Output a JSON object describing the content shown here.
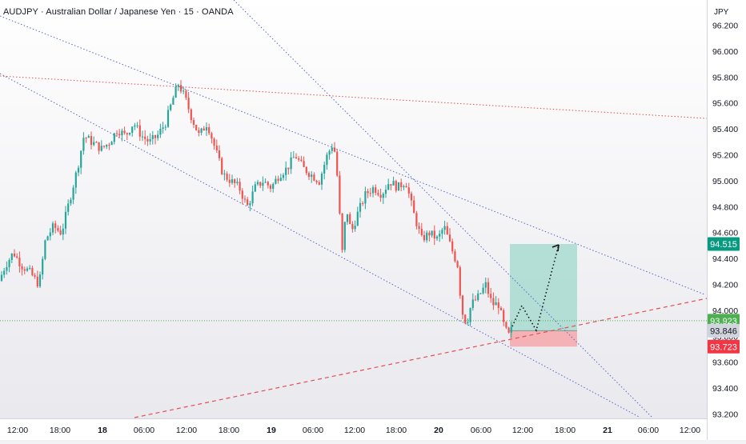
{
  "chart_data": {
    "type": "candlestick",
    "title": "AUDJPY · Australian Dollar / Japanese Yen · 15 · OANDA",
    "currency_label": "JPY",
    "ylim": [
      93.2,
      96.2
    ],
    "y_ticks": [
      "96.200",
      "96.000",
      "95.800",
      "95.600",
      "95.400",
      "95.200",
      "95.000",
      "94.800",
      "94.600",
      "94.400",
      "94.200",
      "94.000",
      "93.800",
      "93.600",
      "93.400",
      "93.200"
    ],
    "x_ticks": [
      "12:00",
      "18:00",
      "18",
      "06:00",
      "12:00",
      "18:00",
      "19",
      "06:00",
      "12:00",
      "18:00",
      "20",
      "06:00",
      "12:00",
      "18:00",
      "21",
      "06:00",
      "12:00"
    ],
    "bold_x_ticks": [
      "18",
      "19",
      "20",
      "21"
    ],
    "price_path": [
      [
        0,
        94.2
      ],
      [
        10,
        94.35
      ],
      [
        20,
        94.45
      ],
      [
        30,
        94.35
      ],
      [
        40,
        94.3
      ],
      [
        52,
        94.2
      ],
      [
        60,
        94.55
      ],
      [
        70,
        94.65
      ],
      [
        80,
        94.6
      ],
      [
        92,
        94.9
      ],
      [
        100,
        95.1
      ],
      [
        108,
        95.35
      ],
      [
        118,
        95.3
      ],
      [
        130,
        95.25
      ],
      [
        140,
        95.3
      ],
      [
        150,
        95.4
      ],
      [
        160,
        95.35
      ],
      [
        170,
        95.45
      ],
      [
        180,
        95.35
      ],
      [
        190,
        95.3
      ],
      [
        200,
        95.35
      ],
      [
        210,
        95.45
      ],
      [
        220,
        95.65
      ],
      [
        226,
        95.75
      ],
      [
        234,
        95.65
      ],
      [
        242,
        95.5
      ],
      [
        252,
        95.35
      ],
      [
        262,
        95.45
      ],
      [
        272,
        95.25
      ],
      [
        282,
        95.05
      ],
      [
        292,
        95.0
      ],
      [
        302,
        94.95
      ],
      [
        312,
        94.8
      ],
      [
        322,
        94.95
      ],
      [
        332,
        95.0
      ],
      [
        342,
        94.95
      ],
      [
        352,
        95.05
      ],
      [
        362,
        95.1
      ],
      [
        372,
        95.2
      ],
      [
        382,
        95.1
      ],
      [
        392,
        95.05
      ],
      [
        402,
        95.0
      ],
      [
        412,
        95.2
      ],
      [
        420,
        95.3
      ],
      [
        426,
        94.95
      ],
      [
        430,
        94.4
      ],
      [
        436,
        94.8
      ],
      [
        442,
        94.6
      ],
      [
        450,
        94.75
      ],
      [
        460,
        94.9
      ],
      [
        470,
        94.95
      ],
      [
        480,
        94.9
      ],
      [
        490,
        95.0
      ],
      [
        500,
        94.95
      ],
      [
        510,
        95.0
      ],
      [
        520,
        94.75
      ],
      [
        530,
        94.55
      ],
      [
        540,
        94.6
      ],
      [
        550,
        94.55
      ],
      [
        558,
        94.65
      ],
      [
        566,
        94.5
      ],
      [
        575,
        94.35
      ],
      [
        580,
        94.0
      ],
      [
        586,
        93.9
      ],
      [
        592,
        94.05
      ],
      [
        600,
        94.1
      ],
      [
        610,
        94.2
      ],
      [
        618,
        94.05
      ],
      [
        626,
        94.05
      ],
      [
        632,
        93.9
      ],
      [
        638,
        93.8
      ],
      [
        642,
        93.85
      ]
    ],
    "current_price": "93.923",
    "current_price_value": 93.923,
    "entry_price": "93.846",
    "entry_price_value": 93.846,
    "target_price": "94.515",
    "target_price_value": 94.515,
    "stop_price": "93.723",
    "stop_price_value": 93.723,
    "colors": {
      "up": "#26a69a",
      "down": "#ef5350",
      "up_wick": "#26a69a",
      "target_zone": "#9fd8cc",
      "stop_zone": "#f4a7ab",
      "trendline": "#5567c7",
      "resistance": "#e05050",
      "current": "#4caf50",
      "entry_label": "#d1d4dc",
      "target_label": "#089981",
      "stop_label": "#f23645"
    }
  }
}
